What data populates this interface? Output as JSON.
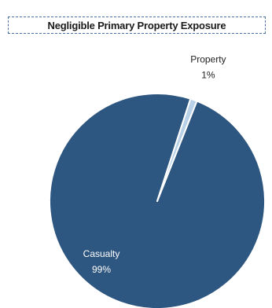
{
  "title": "Negligible Primary Property Exposure",
  "colors": {
    "casualty": "#2d5680",
    "property": "#b8d1e8",
    "slice_border": "#ffffff",
    "label_text": "#ffffff",
    "outside_label_text": "#222222",
    "title_border": "#4a6fa5"
  },
  "chart_data": {
    "type": "pie",
    "title": "Negligible Primary Property Exposure",
    "slices": [
      {
        "label": "Casualty",
        "value": 99,
        "value_label": "99%",
        "color": "#2d5680"
      },
      {
        "label": "Property",
        "value": 1,
        "value_label": "1%",
        "color": "#b8d1e8"
      }
    ]
  }
}
